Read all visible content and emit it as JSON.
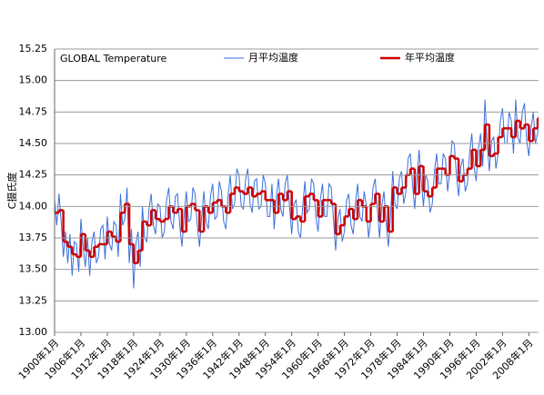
{
  "chart_data": {
    "type": "line",
    "title": "GLOBAL Temperature",
    "y_label": "C摄氏度",
    "xlim": [
      1900,
      2010.2
    ],
    "ylim": [
      13,
      15.25
    ],
    "yticks": [
      {
        "value": 13,
        "label": "13.00"
      },
      {
        "value": 13.25,
        "label": "13.25"
      },
      {
        "value": 13.5,
        "label": "13.50"
      },
      {
        "value": 13.75,
        "label": "13.75"
      },
      {
        "value": 14,
        "label": "14.00"
      },
      {
        "value": 14.25,
        "label": "14.25"
      },
      {
        "value": 14.5,
        "label": "14.50"
      },
      {
        "value": 14.75,
        "label": "14.75"
      },
      {
        "value": 15,
        "label": "15.00"
      },
      {
        "value": 15.25,
        "label": "15.25"
      }
    ],
    "xticks": [
      {
        "value": 1900,
        "label": "1900年1月"
      },
      {
        "value": 1906,
        "label": "1906年1月"
      },
      {
        "value": 1912,
        "label": "1912年1月"
      },
      {
        "value": 1918,
        "label": "1918年1月"
      },
      {
        "value": 1924,
        "label": "1924年1月"
      },
      {
        "value": 1930,
        "label": "1930年1月"
      },
      {
        "value": 1936,
        "label": "1936年1月"
      },
      {
        "value": 1942,
        "label": "1942年1月"
      },
      {
        "value": 1948,
        "label": "1948年1月"
      },
      {
        "value": 1954,
        "label": "1954年1月"
      },
      {
        "value": 1960,
        "label": "1960年1月"
      },
      {
        "value": 1966,
        "label": "1966年1月"
      },
      {
        "value": 1972,
        "label": "1972年1月"
      },
      {
        "value": 1978,
        "label": "1978年1月"
      },
      {
        "value": 1984,
        "label": "1984年1月"
      },
      {
        "value": 1990,
        "label": "1990年1月"
      },
      {
        "value": 1996,
        "label": "1996年1月"
      },
      {
        "value": 2002,
        "label": "2002年1月"
      },
      {
        "value": 2008,
        "label": "2008年1月"
      }
    ],
    "grid": true,
    "series": [
      {
        "name": "月平均温度",
        "color": "#3b6fdc",
        "style": "line",
        "x": [
          1900,
          1900.5,
          1901,
          1901.5,
          1902,
          1902.5,
          1903,
          1903.5,
          1904,
          1904.5,
          1905,
          1905.5,
          1906,
          1906.5,
          1907,
          1907.5,
          1908,
          1908.5,
          1909,
          1909.5,
          1910,
          1910.5,
          1911,
          1911.5,
          1912,
          1912.5,
          1913,
          1913.5,
          1914,
          1914.5,
          1915,
          1915.5,
          1916,
          1916.5,
          1917,
          1917.5,
          1918,
          1918.5,
          1919,
          1919.5,
          1920,
          1920.5,
          1921,
          1921.5,
          1922,
          1922.5,
          1923,
          1923.5,
          1924,
          1924.5,
          1925,
          1925.5,
          1926,
          1926.5,
          1927,
          1927.5,
          1928,
          1928.5,
          1929,
          1929.5,
          1930,
          1930.5,
          1931,
          1931.5,
          1932,
          1932.5,
          1933,
          1933.5,
          1934,
          1934.5,
          1935,
          1935.5,
          1936,
          1936.5,
          1937,
          1937.5,
          1938,
          1938.5,
          1939,
          1939.5,
          1940,
          1940.5,
          1941,
          1941.5,
          1942,
          1942.5,
          1943,
          1943.5,
          1944,
          1944.5,
          1945,
          1945.5,
          1946,
          1946.5,
          1947,
          1947.5,
          1948,
          1948.5,
          1949,
          1949.5,
          1950,
          1950.5,
          1951,
          1951.5,
          1952,
          1952.5,
          1953,
          1953.5,
          1954,
          1954.5,
          1955,
          1955.5,
          1956,
          1956.5,
          1957,
          1957.5,
          1958,
          1958.5,
          1959,
          1959.5,
          1960,
          1960.5,
          1961,
          1961.5,
          1962,
          1962.5,
          1963,
          1963.5,
          1964,
          1964.5,
          1965,
          1965.5,
          1966,
          1966.5,
          1967,
          1967.5,
          1968,
          1968.5,
          1969,
          1969.5,
          1970,
          1970.5,
          1971,
          1971.5,
          1972,
          1972.5,
          1973,
          1973.5,
          1974,
          1974.5,
          1975,
          1975.5,
          1976,
          1976.5,
          1977,
          1977.5,
          1978,
          1978.5,
          1979,
          1979.5,
          1980,
          1980.5,
          1981,
          1981.5,
          1982,
          1982.5,
          1983,
          1983.5,
          1984,
          1984.5,
          1985,
          1985.5,
          1986,
          1986.5,
          1987,
          1987.5,
          1988,
          1988.5,
          1989,
          1989.5,
          1990,
          1990.5,
          1991,
          1991.5,
          1992,
          1992.5,
          1993,
          1993.5,
          1994,
          1994.5,
          1995,
          1995.5,
          1996,
          1996.5,
          1997,
          1997.5,
          1998,
          1998.5,
          1999,
          1999.5,
          2000,
          2000.5,
          2001,
          2001.5,
          2002,
          2002.5,
          2003,
          2003.5,
          2004,
          2004.5,
          2005,
          2005.5,
          2006,
          2006.5,
          2007,
          2007.5,
          2008,
          2008.5,
          2009,
          2009.5,
          2010,
          2010.5
        ],
        "values": [
          14.05,
          13.85,
          14.1,
          13.88,
          13.6,
          13.8,
          13.55,
          13.78,
          13.45,
          13.72,
          13.7,
          13.48,
          13.9,
          13.68,
          13.52,
          13.75,
          13.45,
          13.72,
          13.8,
          13.55,
          13.6,
          13.82,
          13.85,
          13.58,
          13.92,
          13.7,
          13.65,
          13.88,
          13.85,
          13.6,
          14.1,
          13.85,
          13.9,
          14.15,
          13.55,
          13.82,
          13.35,
          13.7,
          13.8,
          13.52,
          14.0,
          13.75,
          13.72,
          13.98,
          14.1,
          13.85,
          13.78,
          14.02,
          14.0,
          13.75,
          13.8,
          14.05,
          14.15,
          13.88,
          13.82,
          14.08,
          14.1,
          13.85,
          13.68,
          13.92,
          14.12,
          13.88,
          13.9,
          14.15,
          14.1,
          13.85,
          13.68,
          13.92,
          14.12,
          13.88,
          13.82,
          14.08,
          14.18,
          13.9,
          13.92,
          14.2,
          14.12,
          13.88,
          13.82,
          14.08,
          14.25,
          13.98,
          14.02,
          14.3,
          14.25,
          14.0,
          13.98,
          14.22,
          14.3,
          14.02,
          13.95,
          14.2,
          14.22,
          13.98,
          14.0,
          14.25,
          14.18,
          13.92,
          13.92,
          14.18,
          13.82,
          14.08,
          14.22,
          13.98,
          13.92,
          14.18,
          14.25,
          14.0,
          13.78,
          14.02,
          14.05,
          13.8,
          13.75,
          14.0,
          14.2,
          13.95,
          13.98,
          14.22,
          14.18,
          13.92,
          13.8,
          14.05,
          14.18,
          13.92,
          13.92,
          14.18,
          14.15,
          13.9,
          13.65,
          13.9,
          13.98,
          13.72,
          13.8,
          14.05,
          14.1,
          13.85,
          13.78,
          14.02,
          14.18,
          13.92,
          13.88,
          14.12,
          14.0,
          13.75,
          13.9,
          14.15,
          14.22,
          13.98,
          13.75,
          14.0,
          14.12,
          13.88,
          13.68,
          13.92,
          14.28,
          14.02,
          13.98,
          14.22,
          14.28,
          14.02,
          14.12,
          14.38,
          14.42,
          14.18,
          13.98,
          14.22,
          14.45,
          14.2,
          14.0,
          14.25,
          14.2,
          13.95,
          14.02,
          14.28,
          14.42,
          14.18,
          14.18,
          14.42,
          14.38,
          14.12,
          14.28,
          14.52,
          14.5,
          14.25,
          14.08,
          14.32,
          14.38,
          14.12,
          14.18,
          14.42,
          14.58,
          14.32,
          14.2,
          14.45,
          14.58,
          14.32,
          14.85,
          14.5,
          14.28,
          14.52,
          14.55,
          14.3,
          14.42,
          14.68,
          14.78,
          14.5,
          14.5,
          14.75,
          14.68,
          14.42,
          14.85,
          14.55,
          14.5,
          14.75,
          14.82,
          14.52,
          14.4,
          14.62,
          14.75,
          14.5,
          14.58,
          14.85
        ]
      },
      {
        "name": "年平均温度",
        "color": "#cc0000",
        "style": "step",
        "x": [
          1900,
          1901,
          1902,
          1903,
          1904,
          1905,
          1906,
          1907,
          1908,
          1909,
          1910,
          1911,
          1912,
          1913,
          1914,
          1915,
          1916,
          1917,
          1918,
          1919,
          1920,
          1921,
          1922,
          1923,
          1924,
          1925,
          1926,
          1927,
          1928,
          1929,
          1930,
          1931,
          1932,
          1933,
          1934,
          1935,
          1936,
          1937,
          1938,
          1939,
          1940,
          1941,
          1942,
          1943,
          1944,
          1945,
          1946,
          1947,
          1948,
          1949,
          1950,
          1951,
          1952,
          1953,
          1954,
          1955,
          1956,
          1957,
          1958,
          1959,
          1960,
          1961,
          1962,
          1963,
          1964,
          1965,
          1966,
          1967,
          1968,
          1969,
          1970,
          1971,
          1972,
          1973,
          1974,
          1975,
          1976,
          1977,
          1978,
          1979,
          1980,
          1981,
          1982,
          1983,
          1984,
          1985,
          1986,
          1987,
          1988,
          1989,
          1990,
          1991,
          1992,
          1993,
          1994,
          1995,
          1996,
          1997,
          1998,
          1999,
          2000,
          2001,
          2002,
          2003,
          2004,
          2005,
          2006,
          2007,
          2008,
          2009,
          2010
        ],
        "values": [
          13.95,
          13.97,
          13.72,
          13.68,
          13.62,
          13.6,
          13.78,
          13.65,
          13.6,
          13.68,
          13.7,
          13.7,
          13.8,
          13.76,
          13.72,
          13.95,
          14.02,
          13.7,
          13.55,
          13.65,
          13.88,
          13.85,
          13.97,
          13.9,
          13.88,
          13.9,
          14.0,
          13.95,
          13.98,
          13.8,
          14.0,
          14.02,
          13.97,
          13.8,
          14.0,
          13.95,
          14.03,
          14.05,
          14.0,
          13.95,
          14.1,
          14.15,
          14.12,
          14.1,
          14.15,
          14.08,
          14.1,
          14.12,
          14.05,
          14.05,
          13.95,
          14.1,
          14.05,
          14.12,
          13.9,
          13.92,
          13.88,
          14.08,
          14.1,
          14.05,
          13.92,
          14.05,
          14.05,
          14.02,
          13.78,
          13.85,
          13.92,
          13.98,
          13.9,
          14.05,
          14.0,
          13.88,
          14.02,
          14.1,
          13.88,
          14.0,
          13.8,
          14.15,
          14.1,
          14.15,
          14.25,
          14.3,
          14.1,
          14.32,
          14.12,
          14.08,
          14.15,
          14.3,
          14.3,
          14.25,
          14.4,
          14.38,
          14.2,
          14.25,
          14.3,
          14.45,
          14.32,
          14.45,
          14.65,
          14.4,
          14.42,
          14.55,
          14.62,
          14.62,
          14.55,
          14.68,
          14.62,
          14.65,
          14.52,
          14.62,
          14.7
        ]
      }
    ]
  }
}
